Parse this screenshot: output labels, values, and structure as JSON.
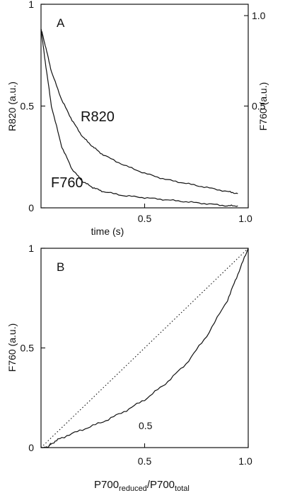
{
  "chart_data": [
    {
      "panel_label": "A",
      "type": "line",
      "xlabel": "time (s)",
      "ylabel_left": "R820 (a.u.)",
      "ylabel_right": "F760 (a.u.)",
      "xlim": [
        0,
        1.0
      ],
      "ylim_left": [
        0,
        1.0
      ],
      "ylim_right": [
        0,
        1.0
      ],
      "x_ticks": [
        "0.5",
        "1.0"
      ],
      "y_ticks_left": [
        "0",
        "0.5",
        "1"
      ],
      "y_ticks_right": [
        "0.5",
        "1.0"
      ],
      "grid": false,
      "series": [
        {
          "name": "R820",
          "x": [
            0.0,
            0.02,
            0.05,
            0.1,
            0.15,
            0.2,
            0.25,
            0.3,
            0.4,
            0.5,
            0.6,
            0.7,
            0.8,
            0.9,
            0.95
          ],
          "y": [
            0.88,
            0.8,
            0.67,
            0.53,
            0.43,
            0.35,
            0.3,
            0.26,
            0.21,
            0.17,
            0.14,
            0.12,
            0.1,
            0.08,
            0.07
          ]
        },
        {
          "name": "F760",
          "x": [
            0.0,
            0.02,
            0.05,
            0.1,
            0.15,
            0.2,
            0.25,
            0.3,
            0.4,
            0.5,
            0.6,
            0.7,
            0.8,
            0.9,
            0.95
          ],
          "y": [
            0.88,
            0.72,
            0.5,
            0.3,
            0.19,
            0.13,
            0.1,
            0.08,
            0.06,
            0.05,
            0.04,
            0.03,
            0.02,
            0.01,
            0.01
          ]
        }
      ]
    },
    {
      "panel_label": "B",
      "type": "line",
      "xlabel": "P700reduced/P700total",
      "xlabel_parts": {
        "main1": "P700",
        "sub1": "reduced",
        "mid": "/P700",
        "sub2": "total"
      },
      "ylabel": "F760 (a.u.)",
      "xlim": [
        0,
        1.0
      ],
      "ylim": [
        0,
        1.0
      ],
      "x_ticks": [
        "0.5",
        "1.0"
      ],
      "y_ticks": [
        "0",
        "0.5",
        "1"
      ],
      "annotation": "0.5",
      "grid": false,
      "series": [
        {
          "style": "solid",
          "x": [
            0.0,
            0.03,
            0.05,
            0.1,
            0.2,
            0.3,
            0.4,
            0.5,
            0.6,
            0.7,
            0.8,
            0.9,
            0.95,
            1.0
          ],
          "y": [
            0.0,
            0.0,
            0.02,
            0.05,
            0.09,
            0.13,
            0.18,
            0.24,
            0.32,
            0.42,
            0.56,
            0.74,
            0.87,
            1.0
          ]
        },
        {
          "style": "dotted",
          "x": [
            0.0,
            1.0
          ],
          "y": [
            0.0,
            1.0
          ]
        }
      ]
    }
  ]
}
